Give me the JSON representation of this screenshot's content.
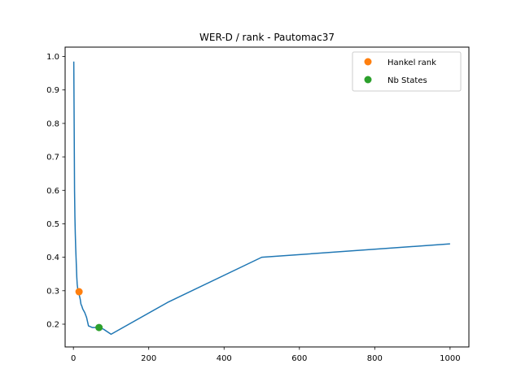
{
  "chart_data": {
    "type": "line",
    "title": "WER-D / rank - Pautomac37",
    "xlabel": "",
    "ylabel": "",
    "xlim": [
      -22,
      1050
    ],
    "ylim": [
      0.132,
      1.028
    ],
    "xticks": [
      0,
      200,
      400,
      600,
      800,
      1000
    ],
    "xtick_labels": [
      "0",
      "200",
      "400",
      "600",
      "800",
      "1000"
    ],
    "yticks": [
      0.2,
      0.3,
      0.4,
      0.5,
      0.6,
      0.7,
      0.8,
      0.9,
      1.0
    ],
    "ytick_labels": [
      "0.2",
      "0.3",
      "0.4",
      "0.5",
      "0.6",
      "0.7",
      "0.8",
      "0.9",
      "1.0"
    ],
    "grid": false,
    "legend_position": "top-right",
    "series": [
      {
        "color": "#1f77b4",
        "style": "line",
        "x": [
          1,
          2,
          3,
          4,
          5,
          6,
          7,
          8,
          9,
          10,
          12,
          14,
          16,
          18,
          20,
          22,
          25,
          30,
          35,
          40,
          50,
          60,
          70,
          80,
          100,
          250,
          500,
          1000
        ],
        "y": [
          0.985,
          0.8,
          0.6,
          0.52,
          0.47,
          0.43,
          0.4,
          0.37,
          0.34,
          0.32,
          0.3,
          0.295,
          0.285,
          0.275,
          0.26,
          0.255,
          0.245,
          0.235,
          0.22,
          0.195,
          0.19,
          0.19,
          0.19,
          0.185,
          0.17,
          0.265,
          0.4,
          0.44
        ]
      },
      {
        "name": "Hankel rank",
        "color": "#ff7f0e",
        "style": "marker",
        "x": [
          15
        ],
        "y": [
          0.297
        ]
      },
      {
        "name": "Nb States",
        "color": "#2ca02c",
        "style": "marker",
        "x": [
          68
        ],
        "y": [
          0.19
        ]
      }
    ]
  }
}
